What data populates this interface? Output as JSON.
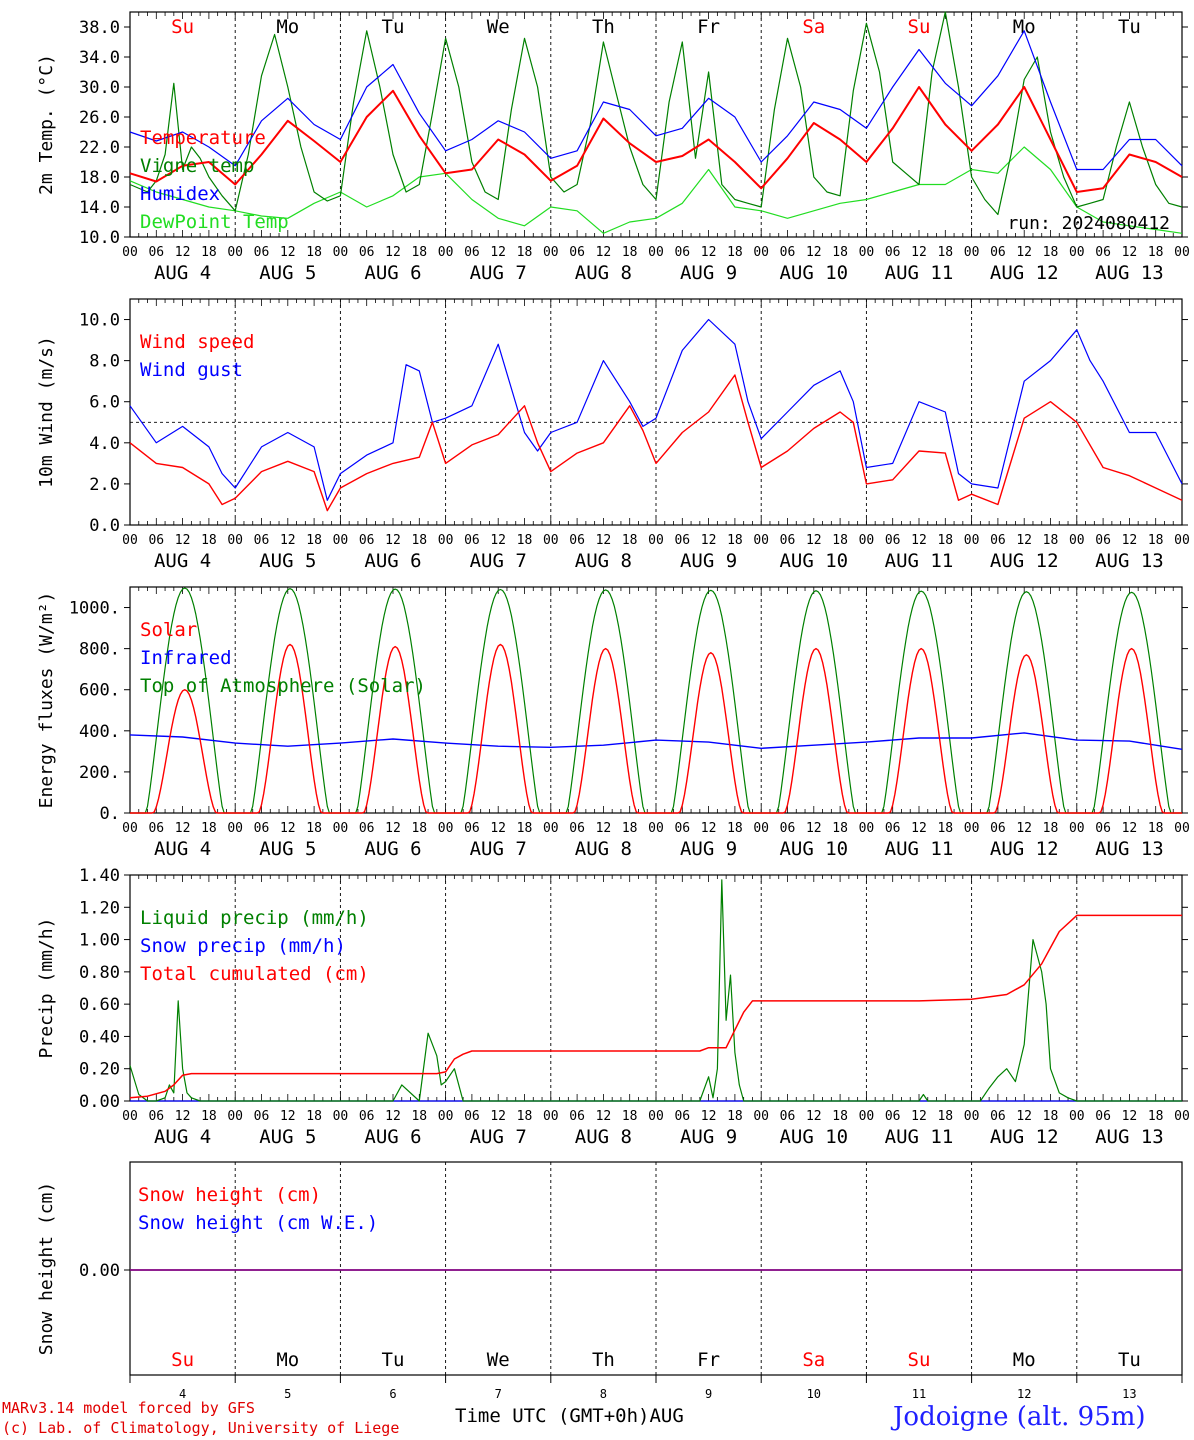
{
  "run_label": "run: 2024080412",
  "footer": {
    "credit_line1": "MARv3.14 model forced by GFS",
    "credit_line2": "(c) Lab. of Climatology, University of Liege",
    "x_axis_title": "Time UTC (GMT+0h)AUG",
    "station": "Jodoigne (alt. 95m)"
  },
  "colors": {
    "red": "#ff0000",
    "blue": "#0000ff",
    "green": "#008000",
    "light_green": "#22dd22",
    "purple": "#800080",
    "grid": "#000000"
  },
  "time_axis": {
    "hour_ticks": [
      "00",
      "06",
      "12",
      "18"
    ],
    "dates": [
      "AUG  4",
      "AUG  5",
      "AUG  6",
      "AUG  7",
      "AUG  8",
      "AUG  9",
      "AUG 10",
      "AUG 11",
      "AUG 12",
      "AUG 13"
    ],
    "weekdays": [
      "Su",
      "Mo",
      "Tu",
      "We",
      "Th",
      "Fr",
      "Sa",
      "Su",
      "Mo",
      "Tu"
    ],
    "weekend_flags": [
      true,
      false,
      false,
      false,
      false,
      false,
      true,
      true,
      false,
      false
    ],
    "day_numbers": [
      "4",
      "5",
      "6",
      "7",
      "8",
      "9",
      "10",
      "11",
      "12",
      "13"
    ]
  },
  "chart_data": [
    {
      "type": "line",
      "ylabel": "2m Temp. (°C)",
      "ylim": [
        10,
        40
      ],
      "yticks": [
        "10.0",
        "14.0",
        "18.0",
        "22.0",
        "26.0",
        "30.0",
        "34.0",
        "38.0"
      ],
      "ytick_values": [
        10,
        14,
        18,
        22,
        26,
        30,
        34,
        38
      ],
      "x_unit": "hours since 4 Aug 00 UTC",
      "series": [
        {
          "name": "Temperature",
          "color": "red",
          "x": [
            0,
            6,
            12,
            18,
            24,
            30,
            36,
            42,
            48,
            54,
            60,
            66,
            72,
            78,
            84,
            90,
            96,
            102,
            108,
            114,
            120,
            126,
            132,
            138,
            144,
            150,
            156,
            162,
            168,
            174,
            180,
            186,
            192,
            198,
            204,
            210,
            216,
            222,
            228,
            234,
            240
          ],
          "y": [
            18.5,
            17.4,
            19.5,
            20.0,
            17.0,
            21.0,
            25.5,
            22.8,
            20.0,
            26.0,
            29.5,
            23.5,
            18.5,
            19.0,
            23.0,
            21.0,
            17.5,
            19.5,
            25.8,
            22.5,
            20.0,
            20.8,
            23.0,
            20.0,
            16.5,
            20.5,
            25.2,
            23.0,
            20.0,
            24.5,
            30.0,
            25.0,
            21.5,
            25.0,
            30.0,
            23.0,
            16.0,
            16.5,
            21.0,
            20.0,
            18.0
          ]
        },
        {
          "name": "Vigne temp",
          "color": "green",
          "x": [
            0,
            4,
            6,
            8,
            10,
            12,
            14,
            16,
            18,
            21,
            24,
            27,
            30,
            33,
            36,
            39,
            42,
            45,
            48,
            51,
            54,
            57,
            60,
            63,
            66,
            69,
            72,
            75,
            78,
            81,
            84,
            87,
            90,
            93,
            96,
            99,
            102,
            105,
            108,
            111,
            114,
            117,
            120,
            123,
            126,
            129,
            132,
            135,
            138,
            141,
            144,
            147,
            150,
            153,
            156,
            159,
            162,
            165,
            168,
            171,
            174,
            177,
            180,
            183,
            186,
            189,
            192,
            195,
            198,
            201,
            204,
            207,
            210,
            213,
            216,
            219,
            222,
            225,
            228,
            231,
            234,
            237,
            240
          ],
          "y": [
            17.0,
            16.0,
            17.5,
            21.0,
            30.5,
            19.0,
            22.0,
            20.5,
            18.0,
            15.5,
            13.5,
            21.0,
            31.5,
            37.0,
            30.0,
            22.0,
            16.0,
            14.8,
            15.5,
            28.0,
            37.5,
            30.0,
            21.0,
            16.0,
            17.0,
            26.5,
            36.5,
            30.0,
            20.0,
            16.0,
            15.0,
            27.0,
            36.5,
            30.0,
            18.0,
            16.0,
            17.0,
            25.0,
            36.0,
            29.0,
            22.0,
            17.0,
            15.0,
            28.0,
            36.0,
            20.5,
            32.0,
            17.0,
            15.0,
            14.5,
            14.0,
            27.0,
            36.5,
            30.0,
            18.0,
            16.0,
            15.5,
            29.5,
            38.5,
            32.0,
            20.0,
            18.5,
            17.0,
            32.0,
            40.0,
            30.0,
            18.0,
            15.0,
            13.0,
            21.0,
            31.0,
            34.0,
            24.0,
            18.0,
            14.0,
            14.5,
            15.0,
            22.0,
            28.0,
            22.0,
            17.0,
            14.5,
            14.0
          ]
        },
        {
          "name": "Humidex",
          "color": "blue",
          "x": [
            0,
            6,
            12,
            18,
            24,
            30,
            36,
            42,
            48,
            54,
            60,
            66,
            72,
            78,
            84,
            90,
            96,
            102,
            108,
            114,
            120,
            126,
            132,
            138,
            144,
            150,
            156,
            162,
            168,
            174,
            180,
            186,
            192,
            198,
            204,
            210,
            216,
            222,
            228,
            234,
            240
          ],
          "y": [
            24.0,
            22.8,
            24.0,
            22.0,
            19.5,
            25.5,
            28.5,
            25.0,
            23.0,
            30.0,
            33.0,
            26.5,
            21.5,
            23.0,
            25.5,
            24.0,
            20.5,
            21.5,
            28.0,
            27.0,
            23.5,
            24.5,
            28.5,
            26.0,
            20.0,
            23.5,
            28.0,
            27.0,
            24.5,
            30.0,
            35.0,
            30.5,
            27.5,
            31.5,
            37.5,
            28.0,
            19.0,
            19.0,
            23.0,
            23.0,
            19.5
          ]
        },
        {
          "name": "DewPoint Temp",
          "color": "light_green",
          "x": [
            0,
            6,
            12,
            18,
            24,
            30,
            36,
            42,
            48,
            54,
            60,
            66,
            72,
            78,
            84,
            90,
            96,
            102,
            108,
            114,
            120,
            126,
            132,
            138,
            144,
            150,
            156,
            162,
            168,
            174,
            180,
            186,
            192,
            198,
            204,
            210,
            216,
            222,
            228,
            234,
            240
          ],
          "y": [
            17.5,
            16.0,
            15.0,
            14.0,
            13.5,
            12.8,
            12.5,
            14.5,
            16.0,
            14.0,
            15.5,
            18.0,
            18.5,
            15.0,
            12.5,
            11.5,
            14.0,
            13.5,
            10.5,
            12.0,
            12.5,
            14.5,
            19.0,
            14.0,
            13.5,
            12.5,
            13.5,
            14.5,
            15.0,
            16.0,
            17.0,
            17.0,
            19.0,
            18.5,
            22.0,
            19.0,
            14.0,
            12.0,
            11.5,
            11.0,
            10.5
          ]
        }
      ]
    },
    {
      "type": "line",
      "ylabel": "10m Wind (m/s)",
      "ylim": [
        0,
        11
      ],
      "yticks": [
        "0.0",
        "2.0",
        "4.0",
        "6.0",
        "8.0",
        "10.0"
      ],
      "ytick_values": [
        0,
        2,
        4,
        6,
        8,
        10
      ],
      "reference_line": 5.0,
      "x_unit": "hours since 4 Aug 00 UTC",
      "series": [
        {
          "name": "Wind speed",
          "color": "red",
          "x": [
            0,
            6,
            12,
            18,
            21,
            24,
            30,
            36,
            42,
            45,
            48,
            54,
            60,
            66,
            69,
            72,
            78,
            84,
            90,
            93,
            96,
            102,
            108,
            114,
            117,
            120,
            126,
            132,
            138,
            141,
            144,
            150,
            156,
            162,
            165,
            168,
            174,
            180,
            186,
            189,
            192,
            198,
            204,
            210,
            216,
            222,
            228,
            234,
            240
          ],
          "y": [
            4.0,
            3.0,
            2.8,
            2.0,
            1.0,
            1.3,
            2.6,
            3.1,
            2.6,
            0.7,
            1.8,
            2.5,
            3.0,
            3.3,
            5.0,
            3.0,
            3.9,
            4.4,
            5.8,
            4.0,
            2.6,
            3.5,
            4.0,
            5.8,
            4.6,
            3.0,
            4.5,
            5.5,
            7.3,
            5.0,
            2.8,
            3.6,
            4.7,
            5.5,
            5.0,
            2.0,
            2.2,
            3.6,
            3.5,
            1.2,
            1.5,
            1.0,
            5.2,
            6.0,
            5.0,
            2.8,
            2.4,
            1.8,
            1.2
          ]
        },
        {
          "name": "Wind gust",
          "color": "blue",
          "x": [
            0,
            6,
            12,
            18,
            21,
            24,
            30,
            36,
            42,
            45,
            48,
            54,
            60,
            63,
            66,
            69,
            72,
            78,
            84,
            90,
            93,
            96,
            102,
            108,
            114,
            117,
            120,
            126,
            132,
            138,
            141,
            144,
            150,
            156,
            162,
            165,
            168,
            174,
            180,
            186,
            189,
            192,
            198,
            204,
            210,
            216,
            219,
            222,
            228,
            234,
            240
          ],
          "y": [
            5.8,
            4.0,
            4.8,
            3.8,
            2.5,
            1.8,
            3.8,
            4.5,
            3.8,
            1.2,
            2.5,
            3.4,
            4.0,
            7.8,
            7.5,
            5.0,
            5.2,
            5.8,
            8.8,
            4.5,
            3.6,
            4.5,
            5.0,
            8.0,
            6.0,
            4.8,
            5.2,
            8.5,
            10.0,
            8.8,
            6.0,
            4.2,
            5.5,
            6.8,
            7.5,
            6.0,
            2.8,
            3.0,
            6.0,
            5.5,
            2.5,
            2.0,
            1.8,
            7.0,
            8.0,
            9.5,
            8.0,
            7.0,
            4.5,
            4.5,
            2.0
          ]
        }
      ]
    },
    {
      "type": "line",
      "ylabel": "Energy fluxes (W/m²)",
      "ylim": [
        0,
        1100
      ],
      "yticks": [
        "0.",
        "200.",
        "400.",
        "600.",
        "800.",
        "1000."
      ],
      "ytick_values": [
        0,
        200,
        400,
        600,
        800,
        1000
      ],
      "x_unit": "hours since 4 Aug 00 UTC",
      "series": [
        {
          "name": "Solar",
          "color": "red",
          "peaks": [
            600,
            820,
            810,
            820,
            800,
            780,
            800,
            800,
            770,
            800
          ],
          "x_peak_hours": [
            12,
            12,
            12,
            12,
            12,
            12,
            12,
            12,
            12,
            12
          ]
        },
        {
          "name": "Infrared",
          "color": "blue",
          "x": [
            0,
            12,
            24,
            36,
            48,
            60,
            72,
            84,
            96,
            108,
            120,
            132,
            144,
            156,
            168,
            180,
            192,
            204,
            216,
            228,
            240
          ],
          "y": [
            380,
            370,
            340,
            325,
            340,
            360,
            340,
            325,
            320,
            330,
            355,
            345,
            315,
            330,
            345,
            365,
            365,
            390,
            355,
            350,
            310
          ]
        },
        {
          "name": "Top of Atmosphere (Solar)",
          "color": "green",
          "peaks": [
            1095,
            1092,
            1090,
            1088,
            1086,
            1084,
            1082,
            1080,
            1077,
            1074
          ]
        }
      ]
    },
    {
      "type": "line",
      "ylabel": "Precip (mm/h)",
      "ylim": [
        0,
        1.4
      ],
      "yticks": [
        "0.00",
        "0.20",
        "0.40",
        "0.60",
        "0.80",
        "1.00",
        "1.20",
        "1.40"
      ],
      "ytick_values": [
        0,
        0.2,
        0.4,
        0.6,
        0.8,
        1.0,
        1.2,
        1.4
      ],
      "x_unit": "hours since 4 Aug 00 UTC",
      "series": [
        {
          "name": "Liquid precip (mm/h)",
          "color": "green",
          "x": [
            0,
            2,
            4,
            6,
            8,
            9,
            10,
            11,
            12,
            13,
            14,
            16,
            60,
            62,
            66,
            68,
            70,
            71,
            72,
            74,
            76,
            78,
            80,
            130,
            132,
            133,
            134,
            135,
            136,
            137,
            138,
            139,
            140,
            141,
            180,
            181,
            182,
            194,
            196,
            198,
            200,
            202,
            204,
            206,
            208,
            209,
            210,
            212,
            214,
            216,
            240
          ],
          "y": [
            0.22,
            0.04,
            0.0,
            0.0,
            0.02,
            0.1,
            0.05,
            0.62,
            0.2,
            0.05,
            0.02,
            0.0,
            0.0,
            0.1,
            0.0,
            0.42,
            0.28,
            0.1,
            0.12,
            0.2,
            0.0,
            0.0,
            0.0,
            0.0,
            0.15,
            0.02,
            0.2,
            1.37,
            0.5,
            0.78,
            0.3,
            0.1,
            0.0,
            0.0,
            0.0,
            0.04,
            0.0,
            0.0,
            0.08,
            0.15,
            0.2,
            0.12,
            0.35,
            1.0,
            0.8,
            0.6,
            0.2,
            0.05,
            0.02,
            0.0,
            0.0
          ]
        },
        {
          "name": "Snow precip (mm/h)",
          "color": "blue",
          "x": [
            0,
            240
          ],
          "y": [
            0,
            0
          ]
        },
        {
          "name": "Total cumulated (cm)",
          "color": "red",
          "x": [
            0,
            4,
            8,
            10,
            12,
            14,
            70,
            72,
            74,
            76,
            78,
            130,
            132,
            136,
            140,
            142,
            180,
            192,
            200,
            204,
            208,
            210,
            212,
            216,
            240
          ],
          "y": [
            0.02,
            0.03,
            0.06,
            0.1,
            0.16,
            0.17,
            0.17,
            0.18,
            0.26,
            0.29,
            0.31,
            0.31,
            0.33,
            0.33,
            0.55,
            0.62,
            0.62,
            0.63,
            0.66,
            0.72,
            0.85,
            0.95,
            1.05,
            1.15,
            1.15
          ]
        }
      ]
    },
    {
      "type": "line",
      "ylabel": "Snow height (cm)",
      "ytick_labels": [
        "0.00"
      ],
      "series": [
        {
          "name": "Snow height (cm)",
          "color": "red",
          "x": [
            0,
            240
          ],
          "y": [
            0,
            0
          ]
        },
        {
          "name": "Snow height (cm W.E.)",
          "color": "blue",
          "x": [
            0,
            240
          ],
          "y": [
            0,
            0
          ]
        }
      ]
    }
  ]
}
